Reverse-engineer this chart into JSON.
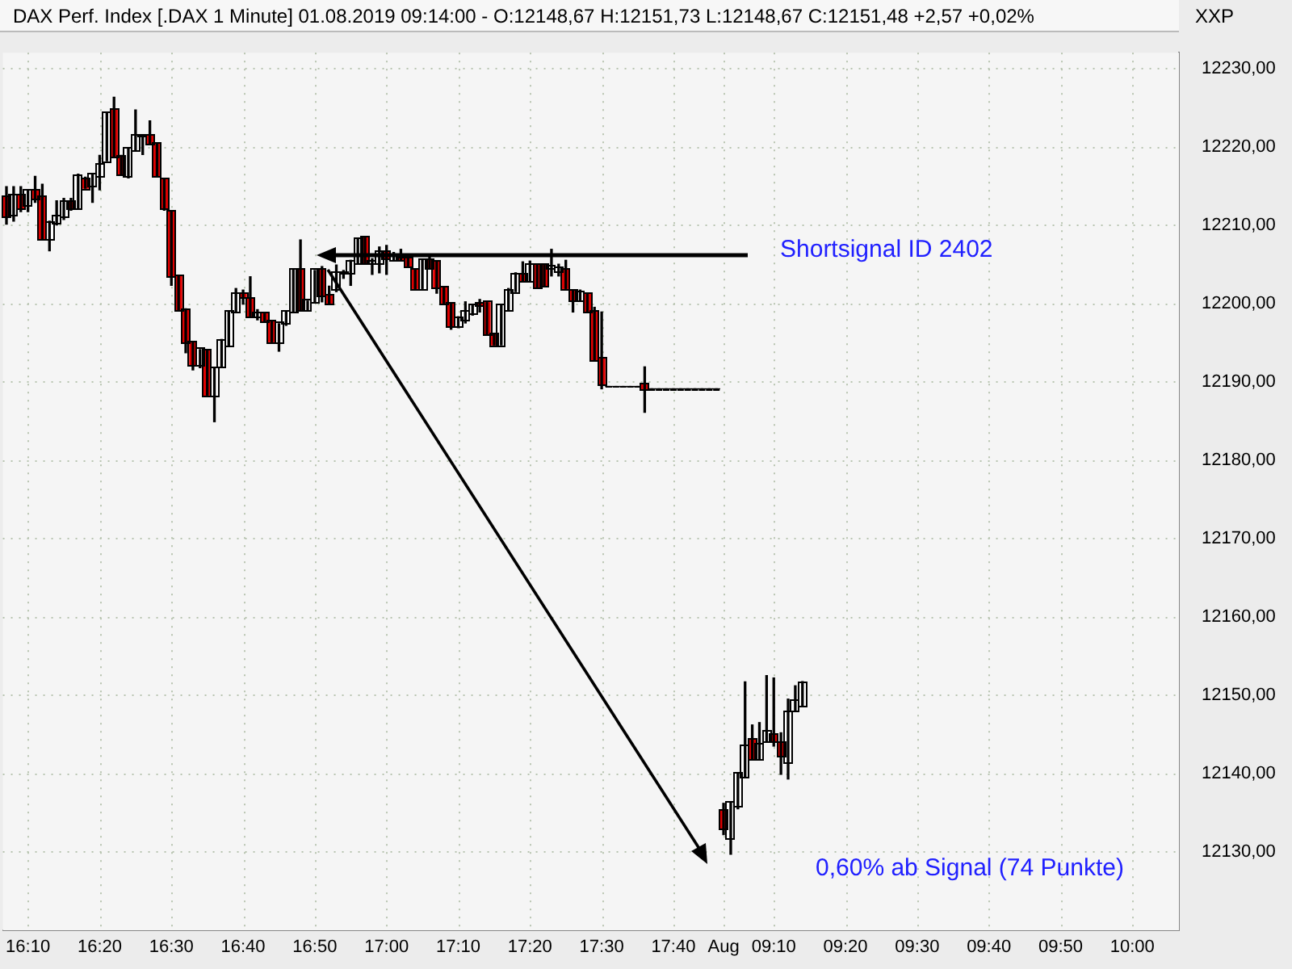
{
  "chart_data": {
    "type": "candlestick",
    "title": "DAX Perf. Index [.DAX  1 Minute] 01.08.2019 09:14:00 - O:12148,67 H:12151,73 L:12148,67 C:12151,48 +2,57 +0,02%",
    "categories": [
      null,
      null,
      null,
      "16:10",
      null,
      null,
      null,
      null,
      null,
      null,
      null,
      null,
      null,
      "16:20",
      null,
      null,
      null,
      null,
      null,
      null,
      null,
      null,
      null,
      "16:30",
      null,
      null,
      null,
      null,
      null,
      null,
      null,
      null,
      null,
      "16:40",
      null,
      null,
      null,
      null,
      null,
      null,
      null,
      null,
      null,
      "16:50",
      null,
      null,
      null,
      null,
      null,
      null,
      null,
      null,
      null,
      "17:00",
      null,
      null,
      null,
      null,
      null,
      null,
      null,
      null,
      null,
      "17:10",
      null,
      null,
      null,
      null,
      null,
      null,
      null,
      null,
      null,
      "17:20",
      null,
      null,
      null,
      null,
      null,
      null,
      null,
      null,
      null,
      "17:30",
      null,
      null,
      null,
      null,
      null,
      null,
      null,
      null,
      null,
      "17:40",
      null,
      null,
      null,
      null,
      null,
      null,
      "Aug",
      null,
      null,
      null,
      null,
      null,
      null,
      "09:10",
      null,
      null,
      null,
      null,
      null,
      null,
      null,
      null,
      null,
      "09:20",
      null,
      null,
      null,
      null,
      null,
      null,
      null,
      null,
      null,
      "09:30",
      null,
      null,
      null,
      null,
      null,
      null,
      null,
      null,
      null,
      "09:40",
      null,
      null,
      null,
      null,
      null,
      null,
      null,
      null,
      null,
      "09:50",
      null,
      null,
      null,
      null,
      null,
      null,
      null,
      null,
      null,
      "10:00",
      null,
      null,
      null,
      null,
      null,
      null
    ],
    "ohlc": [
      [
        12213.5,
        12214.9,
        12210.1,
        12211.0
      ],
      [
        12211.3,
        12214.9,
        12210.5,
        12213.7
      ],
      [
        12213.7,
        12214.9,
        12211.7,
        12212.2
      ],
      [
        12212.5,
        12214.5,
        12211.7,
        12214.3
      ],
      [
        12214.5,
        12216.2,
        12212.9,
        12213.4
      ],
      [
        12213.5,
        12215.2,
        12208.2,
        12208.2
      ],
      [
        12208.2,
        12210.5,
        12206.7,
        12210.3
      ],
      [
        12210.2,
        12213.1,
        12210.0,
        12211.1
      ],
      [
        12211.1,
        12213.4,
        12210.7,
        12212.9
      ],
      [
        12212.9,
        12213.4,
        12211.9,
        12212.1
      ],
      [
        12212.1,
        12216.5,
        12212.1,
        12216.2
      ],
      [
        12215.9,
        12216.1,
        12214.7,
        12214.7
      ],
      [
        12215.1,
        12216.5,
        12212.9,
        12216.5
      ],
      [
        12216.2,
        12218.9,
        12214.5,
        12217.7
      ],
      [
        12218.2,
        12224.3,
        12218.2,
        12224.3
      ],
      [
        12224.7,
        12226.3,
        12218.7,
        12218.7
      ],
      [
        12218.7,
        12218.9,
        12216.4,
        12216.5
      ],
      [
        12216.2,
        12219.9,
        12216.0,
        12219.7
      ],
      [
        12219.5,
        12224.7,
        12219.5,
        12221.5
      ],
      [
        12221.4,
        12221.5,
        12219.0,
        12221.5
      ],
      [
        12221.5,
        12223.3,
        12220.3,
        12220.3
      ],
      [
        12220.3,
        12220.3,
        12216.3,
        12216.3
      ],
      [
        12215.9,
        12215.9,
        12211.9,
        12212.1
      ],
      [
        12211.7,
        12211.7,
        12202.3,
        12203.5
      ],
      [
        12203.5,
        12203.5,
        12199.1,
        12199.1
      ],
      [
        12199.1,
        12199.3,
        12193.7,
        12195.0
      ],
      [
        12195.0,
        12195.0,
        12191.5,
        12192.2
      ],
      [
        12192.2,
        12194.1,
        12191.8,
        12194.1
      ],
      [
        12194.0,
        12194.0,
        12188.3,
        12188.3
      ],
      [
        12188.3,
        12191.7,
        12184.9,
        12191.7
      ],
      [
        12191.9,
        12195.4,
        12191.9,
        12195.3
      ],
      [
        12194.7,
        12199.0,
        12194.5,
        12199.0
      ],
      [
        12198.9,
        12201.9,
        12198.9,
        12201.3
      ],
      [
        12201.3,
        12201.7,
        12199.9,
        12200.7
      ],
      [
        12200.6,
        12203.4,
        12198.3,
        12198.3
      ],
      [
        12198.3,
        12199.2,
        12197.9,
        12198.8
      ],
      [
        12198.8,
        12198.8,
        12197.7,
        12197.7
      ],
      [
        12197.7,
        12197.7,
        12195.1,
        12195.1
      ],
      [
        12195.1,
        12197.4,
        12193.9,
        12197.4
      ],
      [
        12197.4,
        12198.9,
        12197.2,
        12198.9
      ],
      [
        12199.0,
        12204.4,
        12199.0,
        12204.4
      ],
      [
        12204.4,
        12208.1,
        12199.1,
        12199.1
      ],
      [
        12199.1,
        12200.3,
        12199.1,
        12200.3
      ],
      [
        12200.2,
        12204.2,
        12200.2,
        12204.2
      ],
      [
        12204.4,
        12204.7,
        12200.2,
        12201.0
      ],
      [
        12201.0,
        12202.2,
        12199.9,
        12199.9
      ],
      [
        12201.9,
        12204.9,
        12201.5,
        12203.9
      ],
      [
        12203.8,
        12204.2,
        12203.2,
        12203.9
      ],
      [
        12203.9,
        12205.5,
        12202.3,
        12205.3
      ],
      [
        12205.1,
        12208.3,
        12205.1,
        12208.3
      ],
      [
        12208.4,
        12208.5,
        12205.1,
        12205.1
      ],
      [
        12205.2,
        12205.7,
        12203.7,
        12205.4
      ],
      [
        12205.1,
        12207.2,
        12203.9,
        12206.5
      ],
      [
        12206.5,
        12207.4,
        12203.7,
        12205.7
      ],
      [
        12205.5,
        12206.5,
        12205.5,
        12205.9
      ],
      [
        12205.8,
        12206.9,
        12205.5,
        12205.6
      ],
      [
        12205.7,
        12205.9,
        12204.7,
        12204.7
      ],
      [
        12204.4,
        12204.4,
        12201.7,
        12201.9
      ],
      [
        12201.9,
        12205.5,
        12201.9,
        12205.5
      ],
      [
        12205.5,
        12205.9,
        12204.5,
        12204.5
      ],
      [
        12205.4,
        12205.4,
        12201.3,
        12202.1
      ],
      [
        12202.1,
        12202.1,
        12199.9,
        12199.9
      ],
      [
        12199.9,
        12199.9,
        12196.7,
        12197.1
      ],
      [
        12197.1,
        12198.3,
        12196.9,
        12198.1
      ],
      [
        12198.0,
        12200.2,
        12197.5,
        12198.9
      ],
      [
        12198.7,
        12199.9,
        12198.5,
        12199.7
      ],
      [
        12199.9,
        12200.5,
        12198.9,
        12199.7
      ],
      [
        12200.1,
        12200.1,
        12196.0,
        12196.0
      ],
      [
        12196.0,
        12196.0,
        12194.7,
        12194.7
      ],
      [
        12194.7,
        12199.9,
        12194.7,
        12199.7
      ],
      [
        12199.1,
        12201.9,
        12199.1,
        12201.7
      ],
      [
        12201.5,
        12203.9,
        12201.5,
        12203.7
      ],
      [
        12203.7,
        12205.3,
        12202.9,
        12202.9
      ],
      [
        12202.9,
        12205.4,
        12202.9,
        12205.0
      ],
      [
        12205.0,
        12205.0,
        12202.1,
        12202.1
      ],
      [
        12205.0,
        12205.0,
        12202.3,
        12202.3
      ],
      [
        12204.6,
        12206.9,
        12203.5,
        12204.8
      ],
      [
        12204.0,
        12205.0,
        12203.5,
        12204.6
      ],
      [
        12204.3,
        12205.5,
        12201.9,
        12201.9
      ],
      [
        12201.7,
        12201.7,
        12198.9,
        12200.4
      ],
      [
        12200.4,
        12201.7,
        12200.4,
        12201.5
      ],
      [
        12201.2,
        12201.2,
        12198.9,
        12198.9
      ],
      [
        12199.0,
        12199.5,
        12192.7,
        12192.7
      ],
      [
        12193.0,
        12198.9,
        12189.1,
        12189.7
      ],
      [
        12189.4,
        12189.4,
        12189.4,
        12189.4
      ],
      [
        12189.4,
        12189.4,
        12189.4,
        12189.4
      ],
      [
        12189.4,
        12189.4,
        12189.4,
        12189.4
      ],
      [
        12189.4,
        12189.4,
        12189.4,
        12189.4
      ],
      [
        12189.4,
        12189.4,
        12189.4,
        12189.4
      ],
      [
        12189.6,
        12191.9,
        12186.1,
        12189.1
      ],
      [
        12189.1,
        12189.1,
        12189.1,
        12189.1
      ],
      [
        12189.1,
        12189.1,
        12189.1,
        12189.1
      ],
      [
        12189.1,
        12189.1,
        12189.1,
        12189.1
      ],
      [
        12189.1,
        12189.1,
        12189.1,
        12189.1
      ],
      [
        12189.1,
        12189.1,
        12189.1,
        12189.1
      ],
      [
        12189.1,
        12189.1,
        12189.1,
        12189.1
      ],
      [
        12189.1,
        12189.1,
        12189.1,
        12189.1
      ],
      [
        12189.1,
        12189.1,
        12189.1,
        12189.1
      ],
      [
        12189.1,
        12189.1,
        12189.1,
        12189.1
      ],
      [
        12189.1,
        12189.1,
        12189.1,
        12189.1
      ],
      [
        12135.2,
        12136.2,
        12132.2,
        12132.9
      ],
      [
        12131.7,
        12136.3,
        12129.7,
        12136.3
      ],
      [
        12135.9,
        12140.0,
        12135.5,
        12140.0
      ],
      [
        12139.5,
        12151.7,
        12139.5,
        12143.5
      ],
      [
        12144.3,
        12146.2,
        12141.9,
        12141.9
      ],
      [
        12141.9,
        12146.5,
        12141.9,
        12143.8
      ],
      [
        12144.1,
        12152.5,
        12144.1,
        12145.4
      ],
      [
        12144.9,
        12152.2,
        12143.5,
        12144.1
      ],
      [
        12144.0,
        12145.2,
        12139.9,
        12142.3
      ],
      [
        12141.5,
        12149.5,
        12139.3,
        12147.9
      ],
      [
        12148.1,
        12151.2,
        12148.1,
        12149.2
      ],
      [
        12148.67,
        12151.73,
        12148.67,
        12151.48
      ],
      null,
      null,
      null,
      null,
      null,
      null,
      null,
      null,
      null,
      null,
      null,
      null,
      null,
      null,
      null,
      null,
      null,
      null,
      null,
      null,
      null,
      null,
      null,
      null,
      null,
      null,
      null,
      null,
      null,
      null,
      null,
      null,
      null,
      null,
      null,
      null,
      null,
      null,
      null,
      null,
      null,
      null,
      null,
      null,
      null,
      null,
      null,
      null,
      null,
      null,
      null,
      null
    ],
    "colors": [
      "#e00000",
      "#ffffff",
      "#e00000",
      "#ffffff",
      "#e00000",
      "#e00000",
      "#ffffff",
      "#ffffff",
      "#ffffff",
      "#e00000",
      "#ffffff",
      "#e00000",
      "#ffffff",
      "#ffffff",
      "#ffffff",
      "#e00000",
      "#e00000",
      "#ffffff",
      "#ffffff",
      "#ffffff",
      "#e00000",
      "#e00000",
      "#e00000",
      "#e00000",
      "#e00000",
      "#e00000",
      "#e00000",
      "#ffffff",
      "#e00000",
      "#ffffff",
      "#ffffff",
      "#ffffff",
      "#ffffff",
      "#e00000",
      "#e00000",
      "#ffffff",
      "#e00000",
      "#e00000",
      "#ffffff",
      "#ffffff",
      "#ffffff",
      "#e00000",
      "#ffffff",
      "#ffffff",
      "#e00000",
      "#e00000",
      "#ffffff",
      "#ffffff",
      "#ffffff",
      "#ffffff",
      "#e00000",
      "#ffffff",
      "#ffffff",
      "#e00000",
      "#ffffff",
      "#e00000",
      "#e00000",
      "#e00000",
      "#ffffff",
      "#e00000",
      "#e00000",
      "#e00000",
      "#e00000",
      "#ffffff",
      "#ffffff",
      "#ffffff",
      "#e00000",
      "#e00000",
      "#e00000",
      "#ffffff",
      "#ffffff",
      "#ffffff",
      "#e00000",
      "#ffffff",
      "#e00000",
      "#e00000",
      "#ffffff",
      "#ffffff",
      "#e00000",
      "#e00000",
      "#ffffff",
      "#e00000",
      "#e00000",
      "#e00000",
      "#000000",
      "#000000",
      "#000000",
      "#000000",
      "#000000",
      "#e00000",
      "#000000",
      "#000000",
      "#000000",
      "#000000",
      "#000000",
      "#000000",
      "#000000",
      "#000000",
      "#000000",
      "#000000",
      "#e00000",
      "#ffffff",
      "#ffffff",
      "#ffffff",
      "#e00000",
      "#ffffff",
      "#ffffff",
      "#e00000",
      "#e00000",
      "#ffffff",
      "#ffffff",
      "#ffffff",
      null,
      null,
      null,
      null,
      null,
      null,
      null,
      null,
      null,
      null,
      null,
      null,
      null,
      null,
      null,
      null,
      null,
      null,
      null,
      null,
      null,
      null,
      null,
      null,
      null,
      null,
      null,
      null,
      null,
      null,
      null,
      null,
      null,
      null,
      null,
      null,
      null,
      null,
      null,
      null,
      null,
      null,
      null,
      null,
      null,
      null,
      null,
      null,
      null,
      null,
      null,
      null
    ],
    "ylim": [
      12120,
      12232
    ],
    "yticks": [
      {
        "value": 12130,
        "label": "12130,00"
      },
      {
        "value": 12140,
        "label": "12140,00"
      },
      {
        "value": 12150,
        "label": "12150,00"
      },
      {
        "value": 12160,
        "label": "12160,00"
      },
      {
        "value": 12170,
        "label": "12170,00"
      },
      {
        "value": 12180,
        "label": "12180,00"
      },
      {
        "value": 12190,
        "label": "12190,00"
      },
      {
        "value": 12200,
        "label": "12200,00"
      },
      {
        "value": 12210,
        "label": "12210,00"
      },
      {
        "value": 12220,
        "label": "12220,00"
      },
      {
        "value": 12230,
        "label": "12230,00"
      }
    ],
    "grid": true,
    "legend": false,
    "annotations": [
      "Shortsignal ID 2402",
      "0,60% ab Signal (74 Punkte)",
      "XXP"
    ]
  }
}
